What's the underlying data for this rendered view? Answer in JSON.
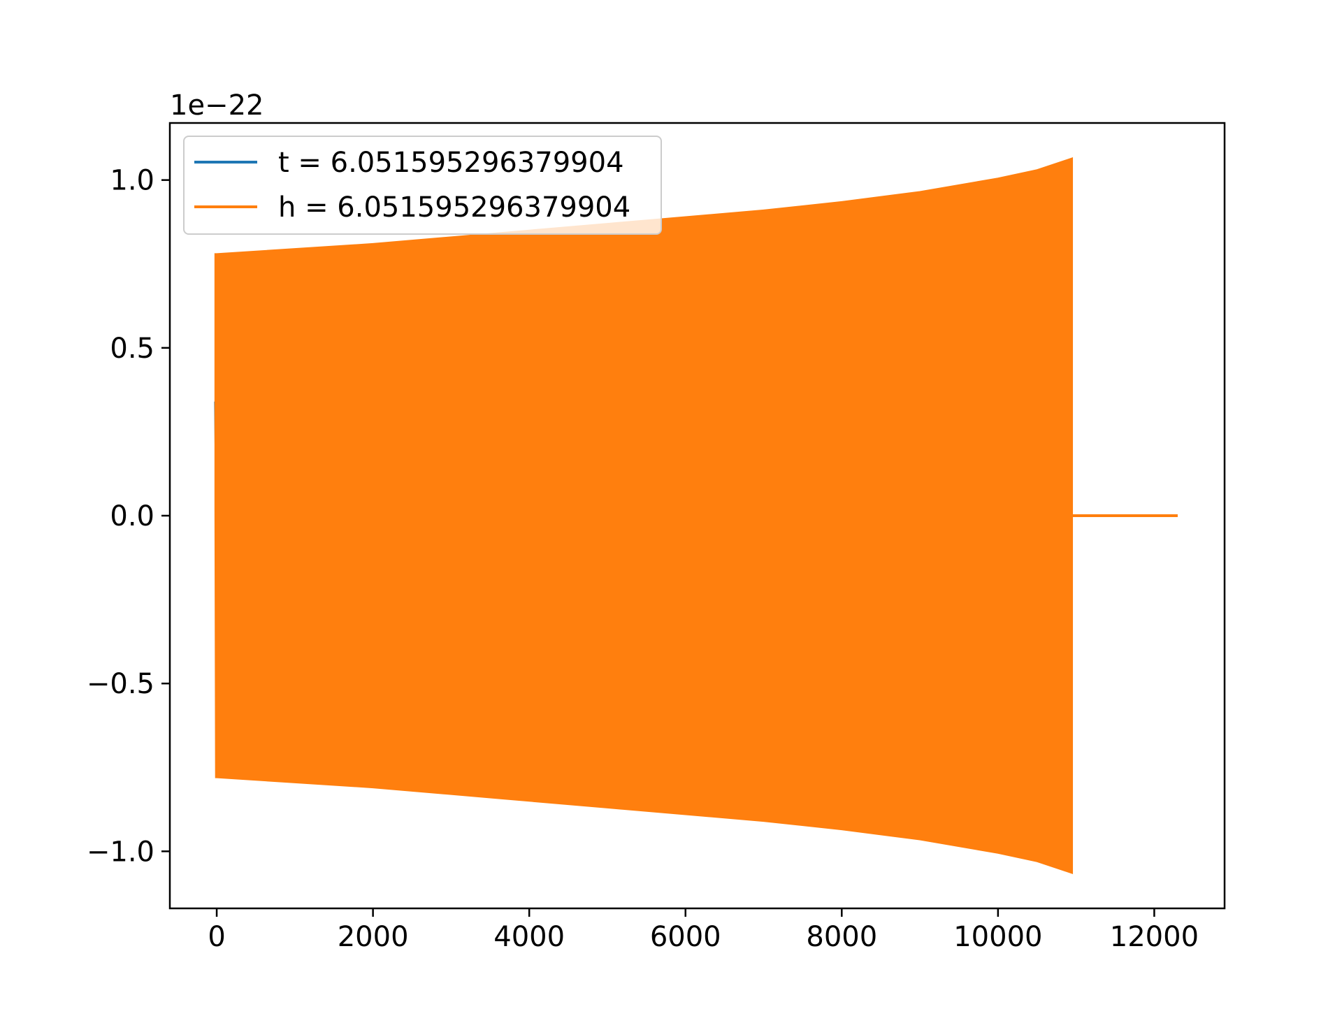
{
  "chart_data": {
    "type": "line",
    "title": "",
    "xlabel": "",
    "ylabel": "",
    "y_offset_label": "1e−22",
    "y_scale_factor": 1e-22,
    "xlim": [
      -600,
      12900
    ],
    "ylim": [
      -1.17,
      1.17
    ],
    "xticks": [
      0,
      2000,
      4000,
      6000,
      8000,
      10000,
      12000
    ],
    "xtick_labels": [
      "0",
      "2000",
      "4000",
      "6000",
      "8000",
      "10000",
      "12000"
    ],
    "yticks": [
      1.0,
      0.5,
      0.0,
      -0.5,
      -1.0
    ],
    "ytick_labels": [
      "1.0",
      "0.5",
      "0.0",
      "−0.5",
      "−1.0"
    ],
    "grid": false,
    "legend_position": "upper-left",
    "series": [
      {
        "name": "t = 6.051595296379904",
        "color": "#1f77b4",
        "kind": "line",
        "points": [
          [
            -20,
            0.34
          ],
          [
            -5,
            0.02
          ],
          [
            5,
            -0.35
          ]
        ]
      },
      {
        "name": "h = 6.051595296379904",
        "color": "#ff7f0e",
        "kind": "oscillation-envelope",
        "envelope_x": [
          -20,
          0,
          1000,
          2000,
          3000,
          4000,
          5000,
          6000,
          7000,
          8000,
          9000,
          10000,
          10500,
          10950
        ],
        "envelope_upper": [
          0.78,
          0.78,
          0.795,
          0.81,
          0.83,
          0.85,
          0.87,
          0.89,
          0.91,
          0.935,
          0.965,
          1.005,
          1.03,
          1.065
        ],
        "envelope_lower": [
          -0.78,
          -0.78,
          -0.795,
          -0.81,
          -0.83,
          -0.85,
          -0.87,
          -0.89,
          -0.91,
          -0.935,
          -0.965,
          -1.005,
          -1.03,
          -1.065
        ],
        "tail": [
          [
            10950,
            0.0
          ],
          [
            12300,
            0.0
          ]
        ]
      }
    ]
  }
}
